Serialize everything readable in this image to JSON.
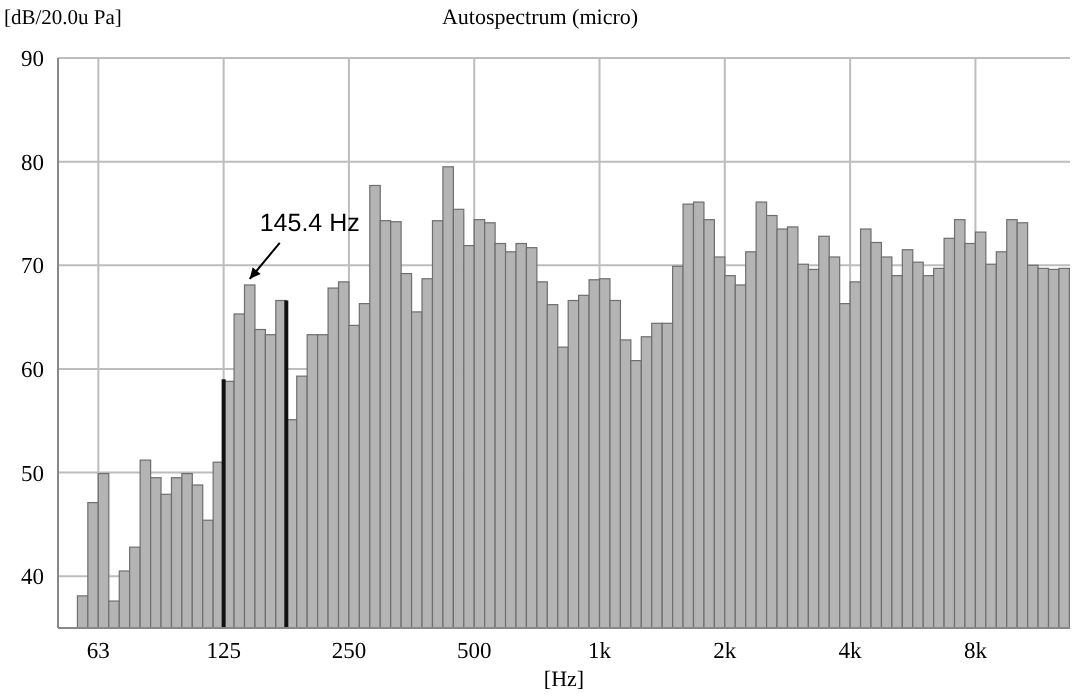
{
  "chart_data": {
    "type": "bar",
    "title": "Autospectrum (micro)",
    "xlabel": "[Hz]",
    "ylabel": "[dB/20.0u Pa]",
    "log": "x",
    "grid": true,
    "xlim": [
      50,
      13500
    ],
    "xticks": [
      {
        "value": 62.5,
        "label": "63"
      },
      125,
      250,
      500,
      {
        "value": 1000,
        "label": "1k"
      },
      {
        "value": 2000,
        "label": "2k"
      },
      {
        "value": 4000,
        "label": "4k"
      },
      {
        "value": 8000,
        "label": "8k"
      }
    ],
    "ylim": [
      35,
      90
    ],
    "yticks": [
      40,
      50,
      60,
      70,
      80,
      90
    ],
    "x": [
      57.3,
      60.7,
      64.3,
      68.2,
      72.2,
      76.5,
      81.1,
      85.9,
      91,
      96.4,
      102.1,
      108.2,
      114.6,
      121.4,
      128.7,
      136.3,
      144.4,
      153,
      162.1,
      171.7,
      182,
      192.8,
      204.2,
      216.4,
      229.3,
      242.9,
      257.3,
      272.6,
      288.8,
      306,
      324.2,
      343.5,
      363.9,
      385.6,
      408.5,
      432.8,
      458.5,
      485.8,
      514.7,
      545.3,
      577.7,
      612,
      648.4,
      687,
      727.8,
      771.1,
      817,
      865.5,
      917,
      971.5,
      1029.3,
      1090.5,
      1155.4,
      1224.1,
      1296.8,
      1374,
      1455.7,
      1542.2,
      1633.9,
      1731.1,
      1834,
      1943.1,
      2058.6,
      2181,
      2310.7,
      2448.1,
      2593.7,
      2747.9,
      2911.3,
      3084.4,
      3267.8,
      3462.2,
      3668,
      3886.1,
      4117.2,
      4362,
      4621.4,
      4896.2,
      5187.4,
      5495.8,
      5822.6,
      6168.8,
      6535.7,
      6924.3,
      7336,
      7772.3,
      8234.4,
      8724,
      9242.8,
      9792.4,
      10374.7,
      10991.6,
      11645.2,
      12337.7,
      13071.4
    ],
    "series": [
      {
        "color": "#b4b4b4",
        "values": [
          38.1,
          47.1,
          49.9,
          37.6,
          40.5,
          42.8,
          51.2,
          49.5,
          47.9,
          49.5,
          49.9,
          48.8,
          45.4,
          51.0,
          58.8,
          65.3,
          68.1,
          63.8,
          63.3,
          66.6,
          55.1,
          59.3,
          63.3,
          63.3,
          67.8,
          68.4,
          64.2,
          66.3,
          77.7,
          74.3,
          74.2,
          69.2,
          65.5,
          68.7,
          74.3,
          79.5,
          75.4,
          71.9,
          74.4,
          74.1,
          72.1,
          71.3,
          72.1,
          71.7,
          68.4,
          66.2,
          62.1,
          66.6,
          67.1,
          68.6,
          68.7,
          66.6,
          62.8,
          60.8,
          63.1,
          64.4,
          64.4,
          69.9,
          75.9,
          76.1,
          74.4,
          70.8,
          69.0,
          68.1,
          71.3,
          76.1,
          74.8,
          73.5,
          73.7,
          70.1,
          69.6,
          72.8,
          70.8,
          66.3,
          68.4,
          73.5,
          72.2,
          70.8,
          69.0,
          71.5,
          70.3,
          69.0,
          69.7,
          72.6,
          74.4,
          72.1,
          73.2,
          70.1,
          71.3,
          74.4,
          74.1,
          70.0,
          69.7,
          69.6,
          69.7
        ]
      },
      {
        "color": "#111111",
        "x": [
          125,
          176.8
        ],
        "values": [
          59,
          66.6
        ]
      }
    ],
    "annotations": [
      {
        "text": "145.4 Hz",
        "x": 144.4,
        "y": 68.1
      }
    ]
  }
}
